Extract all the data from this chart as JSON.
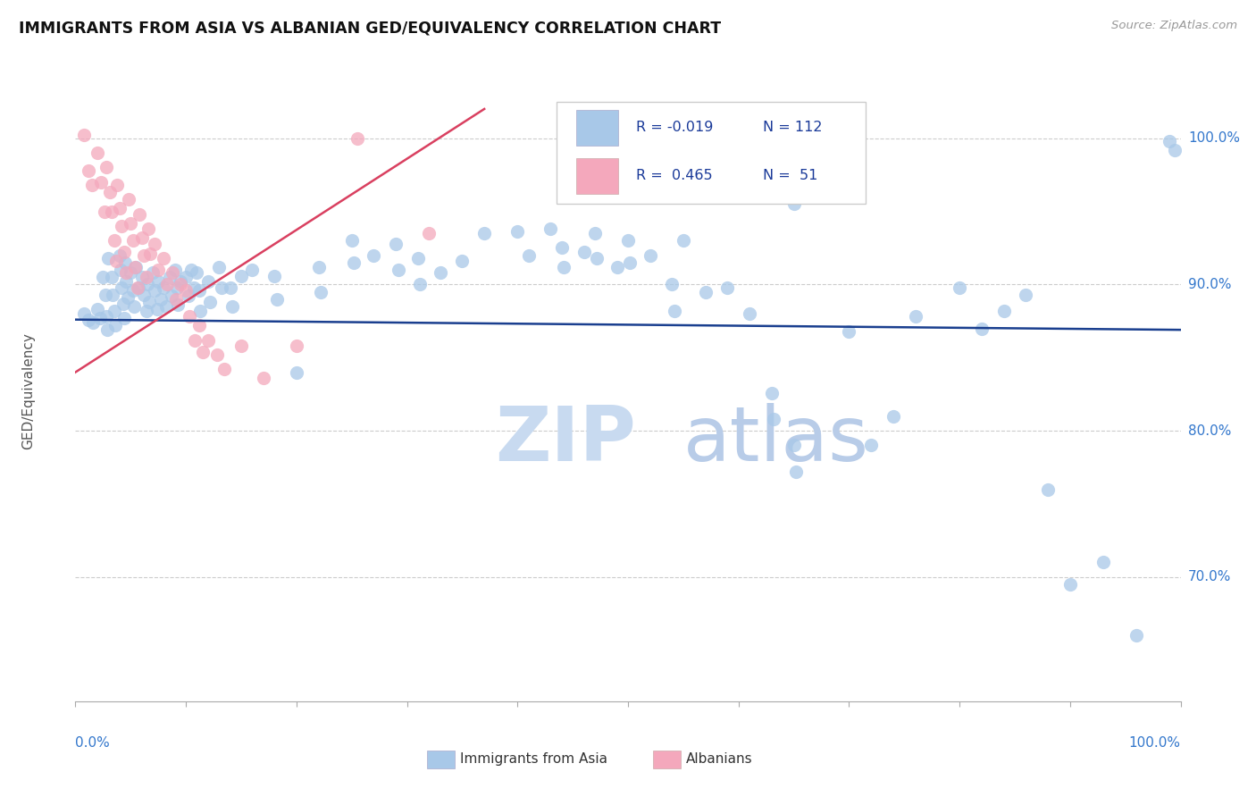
{
  "title": "IMMIGRANTS FROM ASIA VS ALBANIAN GED/EQUIVALENCY CORRELATION CHART",
  "source_text": "Source: ZipAtlas.com",
  "ylabel": "GED/Equivalency",
  "ytick_labels": [
    "100.0%",
    "90.0%",
    "80.0%",
    "70.0%"
  ],
  "ytick_values": [
    1.0,
    0.9,
    0.8,
    0.7
  ],
  "xmin": 0.0,
  "xmax": 1.0,
  "ymin": 0.615,
  "ymax": 1.04,
  "legend_R_blue": "-0.019",
  "legend_N_blue": "112",
  "legend_R_pink": "0.465",
  "legend_N_pink": "51",
  "legend_label_blue": "Immigrants from Asia",
  "legend_label_pink": "Albanians",
  "watermark_zip": "ZIP",
  "watermark_atlas": "atlas",
  "blue_color": "#a8c8e8",
  "pink_color": "#f4a8bc",
  "blue_line_color": "#1a3f8f",
  "pink_line_color": "#d94060",
  "blue_line_x": [
    0.0,
    1.0
  ],
  "blue_line_y": [
    0.876,
    0.869
  ],
  "pink_line_x": [
    0.0,
    0.37
  ],
  "pink_line_y": [
    0.84,
    1.02
  ],
  "blue_scatter": [
    [
      0.008,
      0.88
    ],
    [
      0.012,
      0.876
    ],
    [
      0.016,
      0.874
    ],
    [
      0.02,
      0.883
    ],
    [
      0.022,
      0.877
    ],
    [
      0.025,
      0.905
    ],
    [
      0.027,
      0.893
    ],
    [
      0.028,
      0.878
    ],
    [
      0.029,
      0.869
    ],
    [
      0.03,
      0.918
    ],
    [
      0.033,
      0.905
    ],
    [
      0.034,
      0.893
    ],
    [
      0.035,
      0.882
    ],
    [
      0.036,
      0.872
    ],
    [
      0.04,
      0.92
    ],
    [
      0.041,
      0.91
    ],
    [
      0.042,
      0.898
    ],
    [
      0.043,
      0.887
    ],
    [
      0.044,
      0.877
    ],
    [
      0.045,
      0.915
    ],
    [
      0.046,
      0.902
    ],
    [
      0.047,
      0.891
    ],
    [
      0.05,
      0.908
    ],
    [
      0.052,
      0.896
    ],
    [
      0.053,
      0.885
    ],
    [
      0.055,
      0.912
    ],
    [
      0.057,
      0.898
    ],
    [
      0.06,
      0.905
    ],
    [
      0.062,
      0.893
    ],
    [
      0.064,
      0.882
    ],
    [
      0.065,
      0.9
    ],
    [
      0.067,
      0.888
    ],
    [
      0.07,
      0.908
    ],
    [
      0.072,
      0.896
    ],
    [
      0.074,
      0.883
    ],
    [
      0.075,
      0.902
    ],
    [
      0.077,
      0.89
    ],
    [
      0.08,
      0.898
    ],
    [
      0.082,
      0.885
    ],
    [
      0.085,
      0.905
    ],
    [
      0.087,
      0.892
    ],
    [
      0.09,
      0.91
    ],
    [
      0.092,
      0.898
    ],
    [
      0.093,
      0.886
    ],
    [
      0.095,
      0.902
    ],
    [
      0.1,
      0.905
    ],
    [
      0.102,
      0.892
    ],
    [
      0.105,
      0.91
    ],
    [
      0.107,
      0.898
    ],
    [
      0.11,
      0.908
    ],
    [
      0.112,
      0.896
    ],
    [
      0.113,
      0.882
    ],
    [
      0.12,
      0.902
    ],
    [
      0.122,
      0.888
    ],
    [
      0.13,
      0.912
    ],
    [
      0.132,
      0.898
    ],
    [
      0.14,
      0.898
    ],
    [
      0.142,
      0.885
    ],
    [
      0.15,
      0.906
    ],
    [
      0.16,
      0.91
    ],
    [
      0.18,
      0.906
    ],
    [
      0.182,
      0.89
    ],
    [
      0.2,
      0.84
    ],
    [
      0.22,
      0.912
    ],
    [
      0.222,
      0.895
    ],
    [
      0.25,
      0.93
    ],
    [
      0.252,
      0.915
    ],
    [
      0.27,
      0.92
    ],
    [
      0.29,
      0.928
    ],
    [
      0.292,
      0.91
    ],
    [
      0.31,
      0.918
    ],
    [
      0.312,
      0.9
    ],
    [
      0.33,
      0.908
    ],
    [
      0.35,
      0.916
    ],
    [
      0.37,
      0.935
    ],
    [
      0.4,
      0.936
    ],
    [
      0.41,
      0.92
    ],
    [
      0.43,
      0.938
    ],
    [
      0.44,
      0.925
    ],
    [
      0.442,
      0.912
    ],
    [
      0.46,
      0.922
    ],
    [
      0.47,
      0.935
    ],
    [
      0.472,
      0.918
    ],
    [
      0.49,
      0.912
    ],
    [
      0.5,
      0.93
    ],
    [
      0.502,
      0.915
    ],
    [
      0.52,
      0.92
    ],
    [
      0.54,
      0.9
    ],
    [
      0.542,
      0.882
    ],
    [
      0.55,
      0.93
    ],
    [
      0.57,
      0.895
    ],
    [
      0.59,
      0.898
    ],
    [
      0.61,
      0.88
    ],
    [
      0.63,
      0.826
    ],
    [
      0.632,
      0.808
    ],
    [
      0.65,
      0.79
    ],
    [
      0.652,
      0.772
    ],
    [
      0.7,
      0.868
    ],
    [
      0.72,
      0.79
    ],
    [
      0.74,
      0.81
    ],
    [
      0.76,
      0.878
    ],
    [
      0.8,
      0.898
    ],
    [
      0.82,
      0.87
    ],
    [
      0.84,
      0.882
    ],
    [
      0.86,
      0.893
    ],
    [
      0.88,
      0.76
    ],
    [
      0.9,
      0.695
    ],
    [
      0.93,
      0.71
    ],
    [
      0.96,
      0.66
    ],
    [
      0.99,
      0.998
    ],
    [
      0.995,
      0.992
    ],
    [
      0.6,
      0.97
    ],
    [
      0.65,
      0.955
    ]
  ],
  "pink_scatter": [
    [
      0.008,
      1.002
    ],
    [
      0.012,
      0.978
    ],
    [
      0.015,
      0.968
    ],
    [
      0.02,
      0.99
    ],
    [
      0.023,
      0.97
    ],
    [
      0.026,
      0.95
    ],
    [
      0.028,
      0.98
    ],
    [
      0.031,
      0.963
    ],
    [
      0.033,
      0.95
    ],
    [
      0.035,
      0.93
    ],
    [
      0.037,
      0.916
    ],
    [
      0.038,
      0.968
    ],
    [
      0.04,
      0.952
    ],
    [
      0.042,
      0.94
    ],
    [
      0.044,
      0.922
    ],
    [
      0.046,
      0.908
    ],
    [
      0.048,
      0.958
    ],
    [
      0.05,
      0.942
    ],
    [
      0.052,
      0.93
    ],
    [
      0.054,
      0.912
    ],
    [
      0.056,
      0.898
    ],
    [
      0.058,
      0.948
    ],
    [
      0.06,
      0.932
    ],
    [
      0.062,
      0.92
    ],
    [
      0.064,
      0.905
    ],
    [
      0.066,
      0.938
    ],
    [
      0.068,
      0.921
    ],
    [
      0.072,
      0.928
    ],
    [
      0.075,
      0.91
    ],
    [
      0.08,
      0.918
    ],
    [
      0.083,
      0.9
    ],
    [
      0.088,
      0.908
    ],
    [
      0.091,
      0.89
    ],
    [
      0.095,
      0.9
    ],
    [
      0.1,
      0.896
    ],
    [
      0.103,
      0.878
    ],
    [
      0.108,
      0.862
    ],
    [
      0.112,
      0.872
    ],
    [
      0.115,
      0.854
    ],
    [
      0.12,
      0.862
    ],
    [
      0.128,
      0.852
    ],
    [
      0.135,
      0.842
    ],
    [
      0.15,
      0.858
    ],
    [
      0.17,
      0.836
    ],
    [
      0.2,
      0.858
    ],
    [
      0.255,
      1.0
    ],
    [
      0.32,
      0.935
    ]
  ]
}
